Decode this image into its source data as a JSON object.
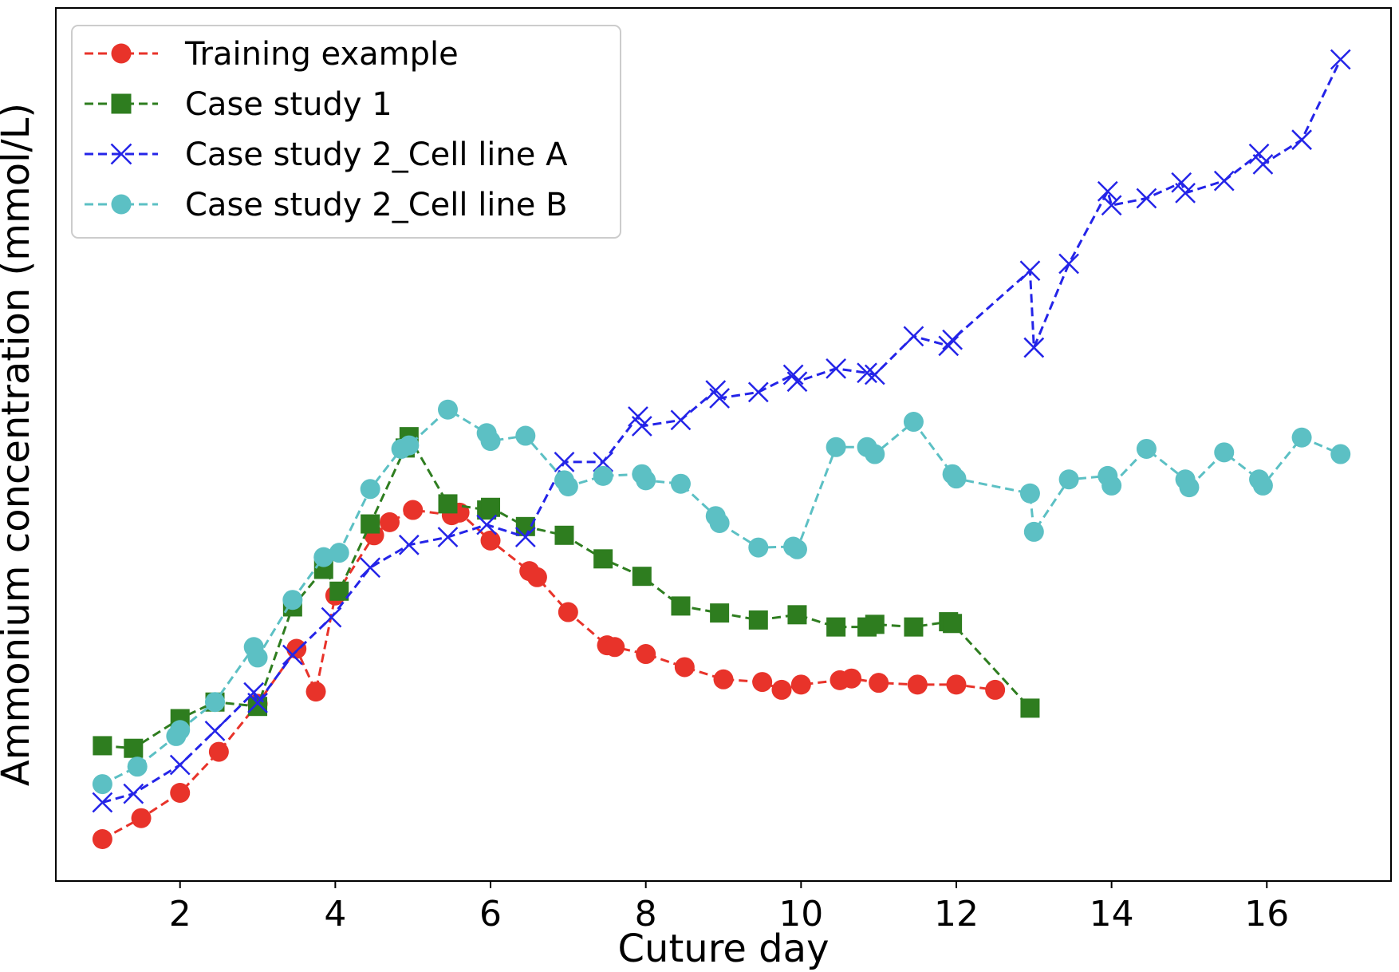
{
  "chart_data": {
    "type": "line",
    "title": "",
    "xlabel": "Cuture day",
    "ylabel": "Ammonium concentration (mmol/L)",
    "xlim": [
      0.4,
      17.6
    ],
    "ylim": [
      0,
      100
    ],
    "xticks": [
      2,
      4,
      6,
      8,
      10,
      12,
      14,
      16
    ],
    "y_tick_labels_shown": false,
    "grid": false,
    "legend_position": "top-left",
    "series": [
      {
        "name": "Training example",
        "color": "#e8332a",
        "marker": "circle",
        "linestyle": "dashed",
        "x": [
          1.0,
          1.5,
          2.0,
          2.5,
          3.0,
          3.5,
          3.75,
          4.0,
          4.5,
          4.7,
          5.0,
          5.5,
          5.6,
          6.0,
          6.5,
          6.6,
          7.0,
          7.5,
          7.6,
          8.0,
          8.5,
          9.0,
          9.5,
          9.75,
          10.0,
          10.5,
          10.65,
          11.0,
          11.5,
          12.0,
          12.5
        ],
        "y": [
          4.8,
          7.2,
          10.1,
          14.8,
          20.3,
          26.6,
          21.7,
          32.7,
          39.6,
          41.1,
          42.5,
          41.9,
          42.2,
          39.0,
          35.5,
          34.8,
          30.8,
          27.0,
          26.8,
          26.0,
          24.5,
          23.1,
          22.8,
          21.9,
          22.5,
          23.0,
          23.2,
          22.7,
          22.5,
          22.5,
          21.9
        ]
      },
      {
        "name": "Case study 1",
        "color": "#2e7d1f",
        "marker": "square",
        "linestyle": "dashed",
        "x": [
          1.0,
          1.4,
          2.0,
          2.45,
          3.0,
          3.45,
          3.85,
          4.05,
          4.45,
          4.9,
          4.95,
          5.45,
          5.95,
          6.0,
          6.45,
          6.95,
          7.45,
          7.95,
          8.45,
          8.95,
          9.45,
          9.95,
          10.45,
          10.85,
          10.95,
          11.45,
          11.9,
          11.95,
          12.95
        ],
        "y": [
          15.5,
          15.2,
          18.6,
          20.5,
          20.0,
          31.4,
          35.7,
          33.2,
          40.9,
          49.6,
          50.9,
          43.2,
          42.5,
          42.8,
          40.6,
          39.6,
          36.9,
          34.9,
          31.5,
          30.7,
          29.9,
          30.5,
          29.1,
          29.1,
          29.4,
          29.1,
          29.7,
          29.5,
          19.8
        ]
      },
      {
        "name": "Case study 2_Cell line A",
        "color": "#2424e8",
        "marker": "x",
        "linestyle": "dashed",
        "x": [
          1.0,
          1.4,
          2.0,
          2.45,
          2.95,
          3.0,
          3.45,
          3.95,
          4.45,
          4.95,
          5.45,
          5.95,
          6.45,
          6.95,
          7.45,
          7.9,
          7.95,
          8.45,
          8.9,
          8.95,
          9.45,
          9.9,
          9.95,
          10.45,
          10.85,
          10.95,
          11.45,
          11.9,
          11.95,
          12.95,
          13.0,
          13.45,
          13.95,
          14.0,
          14.45,
          14.9,
          14.95,
          15.45,
          15.9,
          15.95,
          16.45,
          16.95
        ],
        "y": [
          9.0,
          10.0,
          13.3,
          17.2,
          21.6,
          20.4,
          25.9,
          30.2,
          35.9,
          38.5,
          39.4,
          40.8,
          39.4,
          48.0,
          48.0,
          53.2,
          52.1,
          52.8,
          56.2,
          55.3,
          56.0,
          58.0,
          57.2,
          58.7,
          58.2,
          58.0,
          62.4,
          61.3,
          62.0,
          69.9,
          61.1,
          70.7,
          79.0,
          77.4,
          78.2,
          80.0,
          78.8,
          80.2,
          83.3,
          82.1,
          84.9,
          94.1
        ]
      },
      {
        "name": "Case study 2_Cell line B",
        "color": "#5cc0c4",
        "marker": "circle",
        "linestyle": "dashed",
        "x": [
          1.0,
          1.45,
          1.95,
          2.0,
          2.45,
          2.95,
          3.0,
          3.45,
          3.85,
          4.05,
          4.45,
          4.85,
          4.95,
          5.45,
          5.95,
          6.0,
          6.45,
          6.95,
          7.0,
          7.45,
          7.95,
          8.0,
          8.45,
          8.9,
          8.95,
          9.45,
          9.9,
          9.95,
          10.45,
          10.85,
          10.95,
          11.45,
          11.95,
          12.0,
          12.95,
          13.0,
          13.45,
          13.95,
          14.0,
          14.45,
          14.95,
          15.0,
          15.45,
          15.9,
          15.95,
          16.45,
          16.95
        ],
        "y": [
          11.1,
          13.1,
          16.6,
          17.3,
          20.5,
          26.8,
          25.6,
          32.2,
          37.1,
          37.6,
          44.9,
          49.5,
          49.9,
          54.0,
          51.3,
          50.4,
          51.0,
          45.9,
          45.2,
          46.4,
          46.6,
          45.9,
          45.5,
          41.8,
          41.0,
          38.2,
          38.3,
          38.0,
          49.7,
          49.7,
          48.9,
          52.6,
          46.6,
          46.1,
          44.4,
          40.0,
          46.0,
          46.4,
          45.3,
          49.5,
          46.0,
          45.1,
          49.1,
          46.0,
          45.3,
          50.8,
          48.9
        ]
      }
    ]
  }
}
